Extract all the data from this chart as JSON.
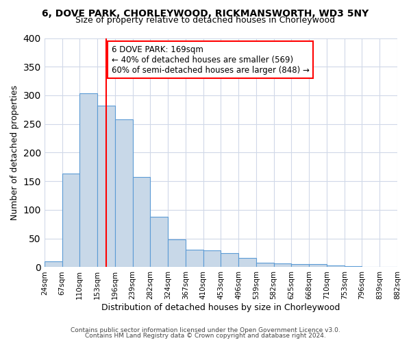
{
  "title": "6, DOVE PARK, CHORLEYWOOD, RICKMANSWORTH, WD3 5NY",
  "subtitle": "Size of property relative to detached houses in Chorleywood",
  "xlabel": "Distribution of detached houses by size in Chorleywood",
  "ylabel": "Number of detached properties",
  "footer_line1": "Contains HM Land Registry data © Crown copyright and database right 2024.",
  "footer_line2": "Contains public sector information licensed under the Open Government Licence v3.0.",
  "bin_edges": [
    0,
    1,
    2,
    3,
    4,
    5,
    6,
    7,
    8,
    9,
    10,
    11,
    12,
    13,
    14,
    15,
    16,
    17,
    18,
    19,
    20
  ],
  "tick_labels": [
    "24sqm",
    "67sqm",
    "110sqm",
    "153sqm",
    "196sqm",
    "239sqm",
    "282sqm",
    "324sqm",
    "367sqm",
    "410sqm",
    "453sqm",
    "496sqm",
    "539sqm",
    "582sqm",
    "625sqm",
    "668sqm",
    "710sqm",
    "753sqm",
    "796sqm",
    "839sqm",
    "882sqm"
  ],
  "bar_heights": [
    10,
    163,
    303,
    282,
    258,
    158,
    88,
    48,
    31,
    29,
    24,
    16,
    8,
    7,
    5,
    5,
    3,
    2,
    1,
    1
  ],
  "bar_color": "#c8d8e8",
  "bar_edge_color": "#5b9bd5",
  "vline_x": 3.5,
  "vline_color": "red",
  "annotation_title": "6 DOVE PARK: 169sqm",
  "annotation_line1": "← 40% of detached houses are smaller (569)",
  "annotation_line2": "60% of semi-detached houses are larger (848) →",
  "ylim": [
    0,
    400
  ],
  "yticks": [
    0,
    50,
    100,
    150,
    200,
    250,
    300,
    350,
    400
  ],
  "background_color": "#ffffff",
  "grid_color": "#d0d8e8"
}
